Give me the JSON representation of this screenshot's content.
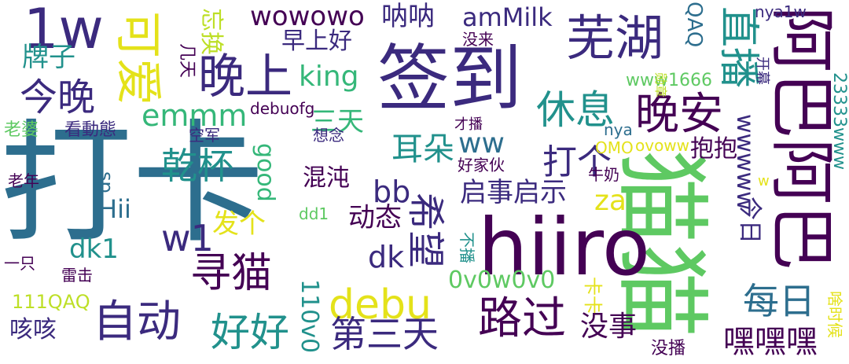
{
  "palette": {
    "dark_purple": "#440154",
    "indigo": "#3b2a7e",
    "teal_blue": "#2d6e8e",
    "teal": "#21918c",
    "green": "#35b779",
    "light_green": "#5ec962",
    "yellow_green": "#bddf26",
    "yellow": "#e4e21a"
  },
  "words": {
    "daka": "打卡",
    "maomao": "猫猫",
    "hiiro": "hiiro",
    "qiandao": "签到",
    "aba": "阿巴阿巴",
    "wuhu": "芜湖",
    "w1w": "1w",
    "keai": "可爱",
    "wanshang": "晚上",
    "wanan": "晚安",
    "zhibo": "直播",
    "zidong": "自动",
    "lujuo": "路过",
    "xunmao": "寻猫",
    "jinwan": "今晚",
    "xiuxi": "休息",
    "wowowo": "wowowo",
    "nana": "呐呐",
    "amilk": "amMilk",
    "wangbhuan": "忘换",
    "debu": "debu",
    "haohao": "好好",
    "disantian": "第三天",
    "meiri": "每日",
    "heiheihei": "嘿嘿嘿",
    "xiwang": "希望",
    "ganbei": "乾杯",
    "daoge": "打个",
    "erduo": "耳朵",
    "emmm": "emmm",
    "w1": "w1",
    "paizi": "牌子",
    "zaoshanghao": "早上好",
    "king": "king",
    "santian": "三天",
    "ww": "ww",
    "bb": "bb",
    "qishi": "启事启示",
    "za": "za",
    "dongtai": "动态",
    "dk": "dk",
    "fage": "发个",
    "dk1": "dk1",
    "hunhun": "混沌",
    "good": "good",
    "hii": "Hii",
    "sp": "sp",
    "kaka": "卡卡",
    "meishi": "没事",
    "ovovovo": "0v0w0v0",
    "v110": "110v0",
    "kaikai": "咳咳",
    "q111": "111QAQ",
    "yizhi": "一只",
    "leiji": "雷击",
    "laonian": "老年",
    "laopo": "老婆",
    "kandongtai": "看動態",
    "kongjun": "空军",
    "xiangnian": "想念",
    "debuofg": "debuofg",
    "cai": "才播",
    "haojiahuo": "好家伙",
    "niunai": "牛奶",
    "omo": "OMO",
    "ovoww": "ovoww",
    "nya": "nya",
    "dd1": "dd1",
    "bubo": "不播",
    "meibo": "没播",
    "shaoshihou": "啥时候",
    "kaimu": "开幕",
    "xunzhang": "勋章",
    "nya1w": "nya1w",
    "qaq": "QAQ",
    "www1666": "www1666",
    "w23333": "23333www",
    "wwwww": "wwwww",
    "baobao": "抱抱",
    "jinri": "今日",
    "meilai": "没来",
    "jitian": "几天",
    "small_w": "w"
  }
}
